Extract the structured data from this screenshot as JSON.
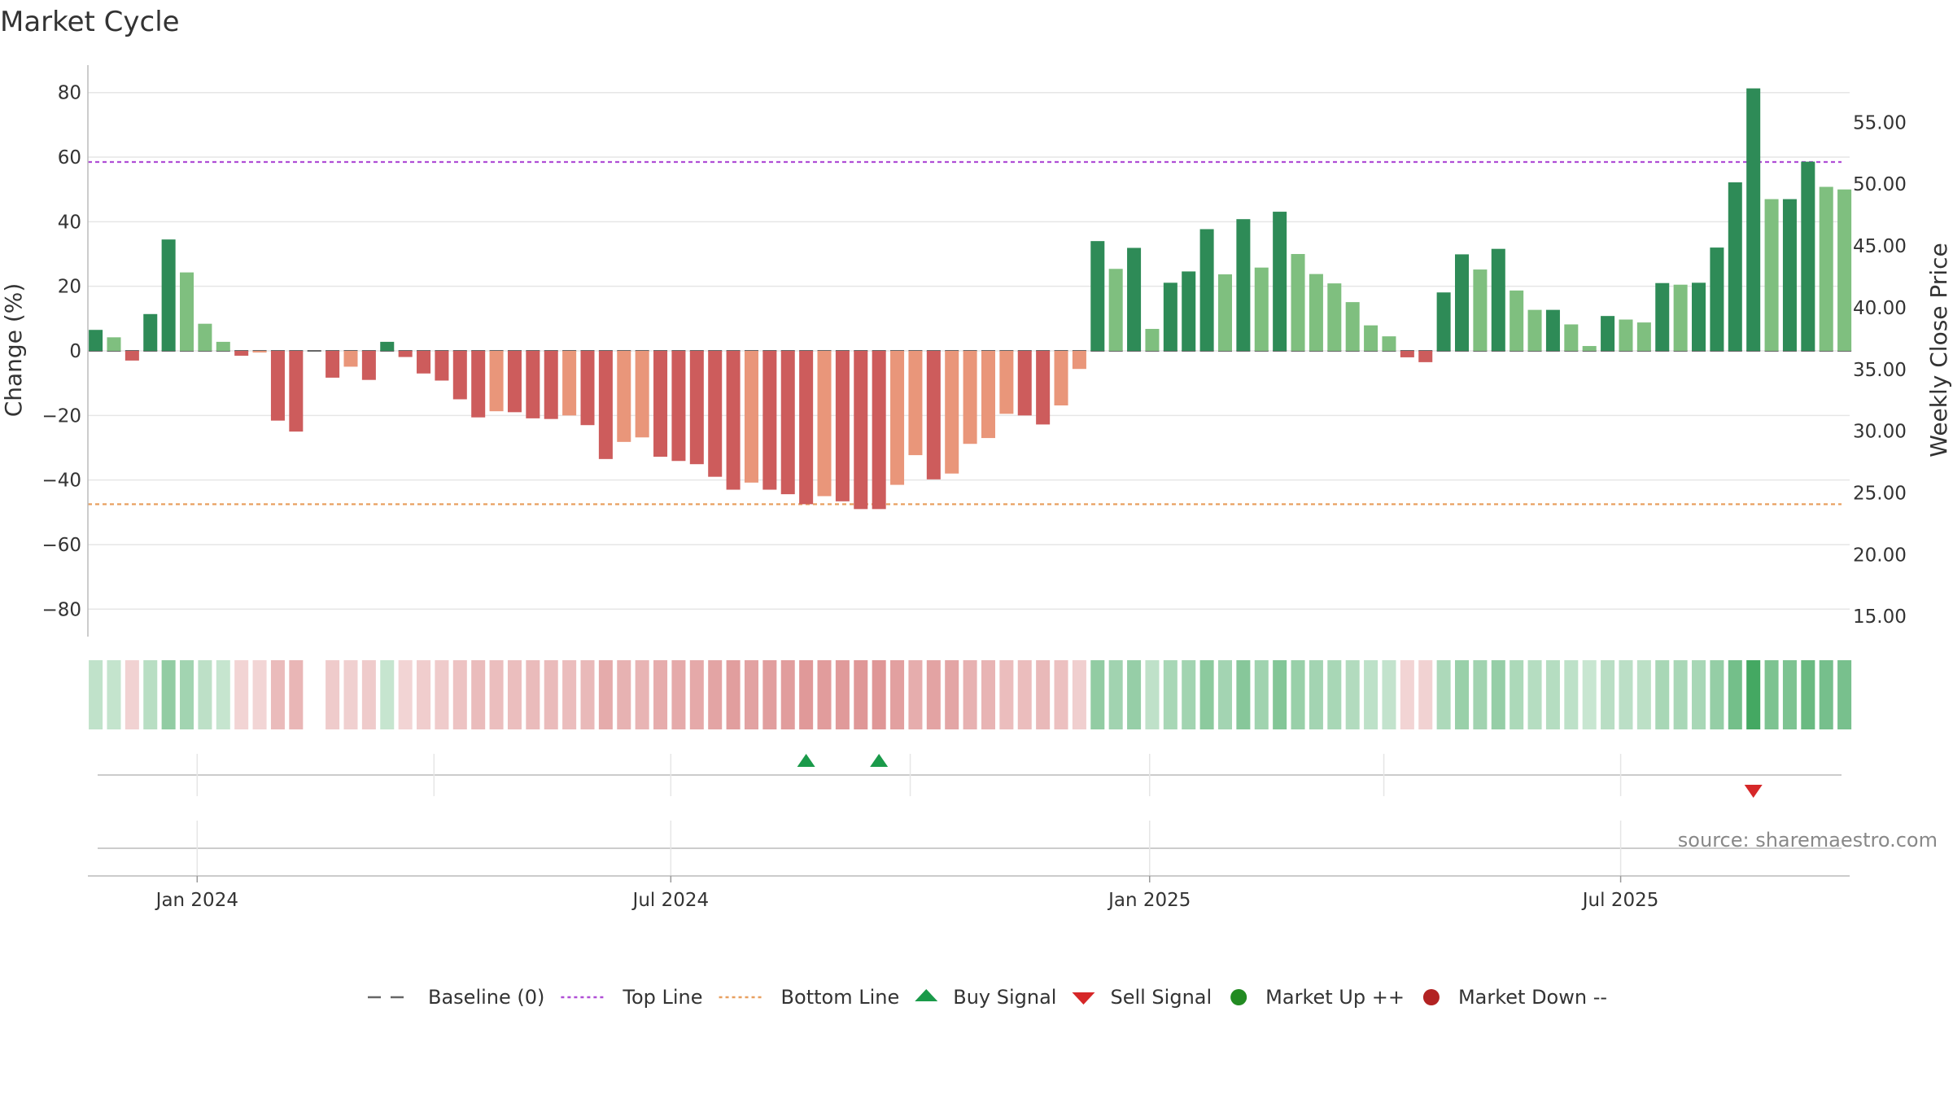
{
  "chart_data": {
    "type": "bar",
    "title": "Market Cycle",
    "ylabel": "Change (%)",
    "y2label": "Weekly Close Price",
    "ylim": [
      -88,
      88
    ],
    "yticks": [
      80,
      60,
      40,
      20,
      0,
      -20,
      -40,
      -60,
      -80
    ],
    "ytick_labels": [
      "80",
      "60",
      "40",
      "20",
      "0",
      "−20",
      "−40",
      "−60",
      "−80"
    ],
    "y2lim": [
      13.5,
      59.5
    ],
    "y2ticks": [
      55,
      50,
      45,
      40,
      35,
      30,
      25,
      20,
      15
    ],
    "y2tick_labels": [
      "55.00",
      "50.00",
      "45.00",
      "40.00",
      "35.00",
      "30.00",
      "25.00",
      "20.00",
      "15.00"
    ],
    "x_start": "2023-11-20",
    "x_end": "2025-09-27",
    "first_week": "2023-11-23",
    "week_days": 7,
    "xticks": [
      {
        "date": "2024-01-01",
        "label": "Jan 2024"
      },
      {
        "date": "2024-07-01",
        "label": "Jul 2024"
      },
      {
        "date": "2025-01-01",
        "label": "Jan 2025"
      },
      {
        "date": "2025-07-01",
        "label": "Jul 2025"
      }
    ],
    "minor_gridlines": [
      "2024-04-01",
      "2024-10-01",
      "2025-04-01"
    ],
    "top_line": 58.5,
    "bottom_line": -47.5,
    "baseline": 0,
    "values": [
      6.5,
      4.2,
      -3.0,
      11.4,
      34.5,
      24.3,
      8.4,
      2.8,
      -1.5,
      -0.5,
      -21.6,
      -25.0,
      null,
      -8.3,
      -4.9,
      -9.0,
      2.8,
      -1.9,
      -7.0,
      -9.2,
      -15.0,
      -20.6,
      -18.7,
      -19.0,
      -20.9,
      -21.1,
      -20.0,
      -23.0,
      -33.5,
      -28.2,
      -26.8,
      -32.8,
      -34.1,
      -35.1,
      -39.0,
      -43.0,
      -40.8,
      -43.0,
      -44.4,
      -47.5,
      -45.0,
      -46.6,
      -49.0,
      -49.0,
      -41.5,
      -32.3,
      -39.8,
      -38.0,
      -28.8,
      -27.0,
      -19.5,
      -20.0,
      -22.8,
      -16.9,
      -5.6,
      34.0,
      25.4,
      31.9,
      6.8,
      21.1,
      24.6,
      37.7,
      23.7,
      40.8,
      25.8,
      43.1,
      30.0,
      23.8,
      20.9,
      15.1,
      7.9,
      4.5,
      -2.0,
      -3.5,
      18.1,
      29.9,
      25.2,
      31.6,
      18.7,
      12.7,
      12.7,
      8.2,
      1.5,
      10.8,
      9.7,
      8.8,
      21.0,
      20.5,
      21.1,
      32.0,
      52.2,
      81.3,
      47.0,
      47.0,
      58.6,
      50.8,
      50.0
    ],
    "bar_colors": {
      "strong_up": "#2e8b57",
      "mild_up": "#7fbf7f",
      "strong_down": "#cd5c5c",
      "mild_down": "#e9967a"
    },
    "strip_colors": {
      "up": "#2e9e4f",
      "down": "#cd5c5c"
    },
    "signals": [
      {
        "type": "buy",
        "date": "2024-08-22"
      },
      {
        "type": "buy",
        "date": "2024-09-19"
      },
      {
        "type": "sell",
        "date": "2025-08-21"
      }
    ],
    "line_colors": {
      "top": "#b04fd6",
      "bottom": "#e8a060",
      "baseline": "#666666",
      "buy": "#1a9a4a",
      "sell": "#d62728",
      "market_up": "#228b22",
      "market_down": "#b22222"
    },
    "legend_position": "bottom-center",
    "legend": [
      {
        "label": "Baseline (0)",
        "symbol": "baseline"
      },
      {
        "label": "Top Line",
        "symbol": "top"
      },
      {
        "label": "Bottom Line",
        "symbol": "bottom"
      },
      {
        "label": "Buy Signal",
        "symbol": "buy"
      },
      {
        "label": "Sell Signal",
        "symbol": "sell"
      },
      {
        "label": "Market Up ++",
        "symbol": "market_up"
      },
      {
        "label": "Market Down --",
        "symbol": "market_down"
      }
    ],
    "source": "source: sharemaestro.com",
    "grid": true
  }
}
